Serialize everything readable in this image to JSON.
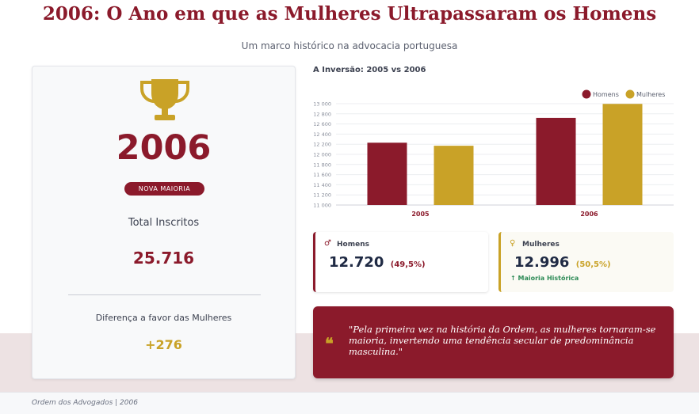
{
  "header": {
    "title": "2006: O Ano em que as Mulheres Ultrapassaram os Homens",
    "subtitle": "Um marco histórico na advocacia portuguesa"
  },
  "summary": {
    "icon": "trophy-icon",
    "year": "2006",
    "badge": "NOVA MAIORIA",
    "total_label": "Total Inscritos",
    "total_value": "25.716",
    "diff_label": "Diferença a favor das Mulheres",
    "diff_value": "+276"
  },
  "colors": {
    "men": "#8b1a2b",
    "women": "#c9a227",
    "positive": "#2e8b57"
  },
  "chart_data": {
    "type": "bar",
    "title": "A Inversão: 2005 vs 2006",
    "categories": [
      "2005",
      "2006"
    ],
    "series": [
      {
        "name": "Homens",
        "values": [
          12230,
          12720
        ]
      },
      {
        "name": "Mulheres",
        "values": [
          12170,
          12996
        ]
      }
    ],
    "ylim": [
      11000,
      13000
    ],
    "yticks": [
      "11 000",
      "11 200",
      "11 400",
      "11 600",
      "11 800",
      "12 000",
      "12 200",
      "12 400",
      "12 600",
      "12 800",
      "13 000"
    ],
    "grid": true,
    "legend_position": "top-right"
  },
  "stats": {
    "men": {
      "symbol": "♂",
      "label": "Homens",
      "value": "12.720",
      "pct": "(49,5%)"
    },
    "women": {
      "symbol": "♀",
      "label": "Mulheres",
      "value": "12.996",
      "pct": "(50,5%)",
      "note": "↑ Maioria Histórica"
    }
  },
  "quote": {
    "mark": "❝",
    "text": "\"Pela primeira vez na história da Ordem, as mulheres tornaram-se maioria, invertendo uma tendência secular de predominância masculina.\""
  },
  "footer": {
    "source": "Ordem dos Advogados | 2006"
  }
}
